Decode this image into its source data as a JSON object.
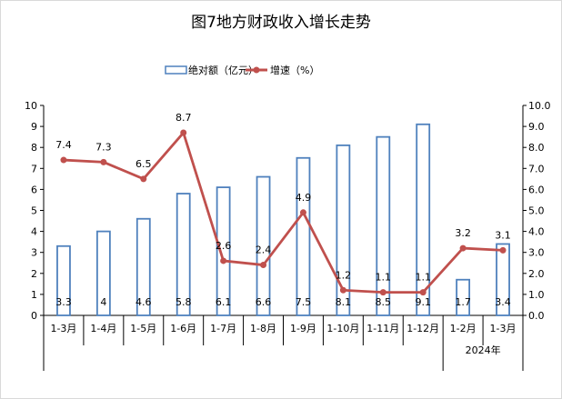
{
  "chart_data": {
    "type": "bar+line",
    "title": "图7地方财政收入增长走势",
    "categories": [
      "1-3月",
      "1-4月",
      "1-5月",
      "1-6月",
      "1-7月",
      "1-8月",
      "1-9月",
      "1-10月",
      "1-11月",
      "1-12月",
      "1-2月",
      "1-3月"
    ],
    "group_label": "2024年",
    "series": [
      {
        "name": "绝对额（亿元）",
        "type": "bar",
        "axis": "left",
        "color": "#4f81bd",
        "values": [
          3.3,
          4,
          4.6,
          5.8,
          6.1,
          6.6,
          7.5,
          8.1,
          8.5,
          9.1,
          1.7,
          3.4
        ],
        "labels": [
          "3.3",
          "4",
          "4.6",
          "5.8",
          "6.1",
          "6.6",
          "7.5",
          "8.1",
          "8.5",
          "9.1",
          "1.7",
          "3.4"
        ]
      },
      {
        "name": "增速（%）",
        "type": "line",
        "axis": "right",
        "color": "#c0504d",
        "values": [
          7.4,
          7.3,
          6.5,
          8.7,
          2.6,
          2.4,
          4.9,
          1.2,
          1.1,
          1.1,
          3.2,
          3.1
        ],
        "labels": [
          "7.4",
          "7.3",
          "6.5",
          "8.7",
          "2.6",
          "2.4",
          "4.9",
          "1.2",
          "1.1",
          "1.1",
          "3.2",
          "3.1"
        ]
      }
    ],
    "ylim_left": [
      0,
      10
    ],
    "yticks_left": [
      "0",
      "1",
      "2",
      "3",
      "4",
      "5",
      "6",
      "7",
      "8",
      "9",
      "10"
    ],
    "ylim_right": [
      0,
      10
    ],
    "yticks_right": [
      "0.0",
      "1.0",
      "2.0",
      "3.0",
      "4.0",
      "5.0",
      "6.0",
      "7.0",
      "8.0",
      "9.0",
      "10.0"
    ],
    "legend_position": "top",
    "grid": false
  }
}
